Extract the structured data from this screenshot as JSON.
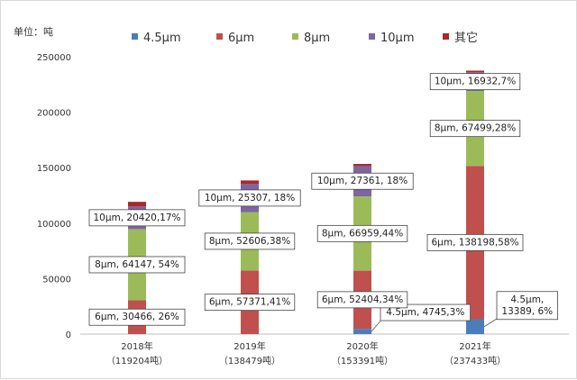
{
  "chart_data": {
    "type": "bar",
    "stacked": true,
    "ylabel": "单位：吨",
    "ylim": [
      0,
      250000
    ],
    "yticks": [
      0,
      50000,
      100000,
      150000,
      200000,
      250000
    ],
    "grid": false,
    "legend_position": "top",
    "categories": [
      "2018年",
      "2019年",
      "2020年",
      "2021年"
    ],
    "category_totals": [
      "（119204吨）",
      "（138479吨）",
      "（153391吨）",
      "（237433吨）"
    ],
    "series": [
      {
        "name": "4.5μm",
        "color": "#4a7ebb",
        "values": [
          0,
          0,
          4745,
          13389
        ]
      },
      {
        "name": "6μm",
        "color": "#c0504d",
        "values": [
          30466,
          57371,
          52404,
          138198
        ]
      },
      {
        "name": "8μm",
        "color": "#9bbb59",
        "values": [
          64147,
          52606,
          66959,
          67499
        ]
      },
      {
        "name": "10μm",
        "color": "#8064a2",
        "values": [
          20420,
          25307,
          27361,
          16932
        ]
      },
      {
        "name": "其它",
        "color": "#a52a2a",
        "values": [
          4171,
          3195,
          1922,
          1415
        ]
      }
    ],
    "legend_labels": [
      "4.5μm",
      "6μm",
      "8μm",
      "10μm",
      "其它"
    ],
    "annotations": [
      {
        "text": "6μm, 30466, 26%",
        "cat": 0,
        "series": 1
      },
      {
        "text": "8μm, 64147, 54%",
        "cat": 0,
        "series": 2
      },
      {
        "text": "10μm, 20420,17%",
        "cat": 0,
        "series": 3
      },
      {
        "text": "6μm, 57371,41%",
        "cat": 1,
        "series": 1
      },
      {
        "text": "8μm, 52606,38%",
        "cat": 1,
        "series": 2
      },
      {
        "text": "10μm, 25307, 18%",
        "cat": 1,
        "series": 3
      },
      {
        "text": "4.5μm, 4745,3%",
        "cat": 2,
        "series": 0
      },
      {
        "text": "6μm, 52404,34%",
        "cat": 2,
        "series": 1
      },
      {
        "text": "8μm, 66959,44%",
        "cat": 2,
        "series": 2
      },
      {
        "text": "10μm, 27361, 18%",
        "cat": 2,
        "series": 3
      },
      {
        "text": "4.5μm,\n13389, 6%",
        "cat": 3,
        "series": 0
      },
      {
        "text": "6μm, 138198,58%",
        "cat": 3,
        "series": 1
      },
      {
        "text": "8μm, 67499,28%",
        "cat": 3,
        "series": 2
      },
      {
        "text": "10μm, 16932,7%",
        "cat": 3,
        "series": 3
      }
    ]
  }
}
